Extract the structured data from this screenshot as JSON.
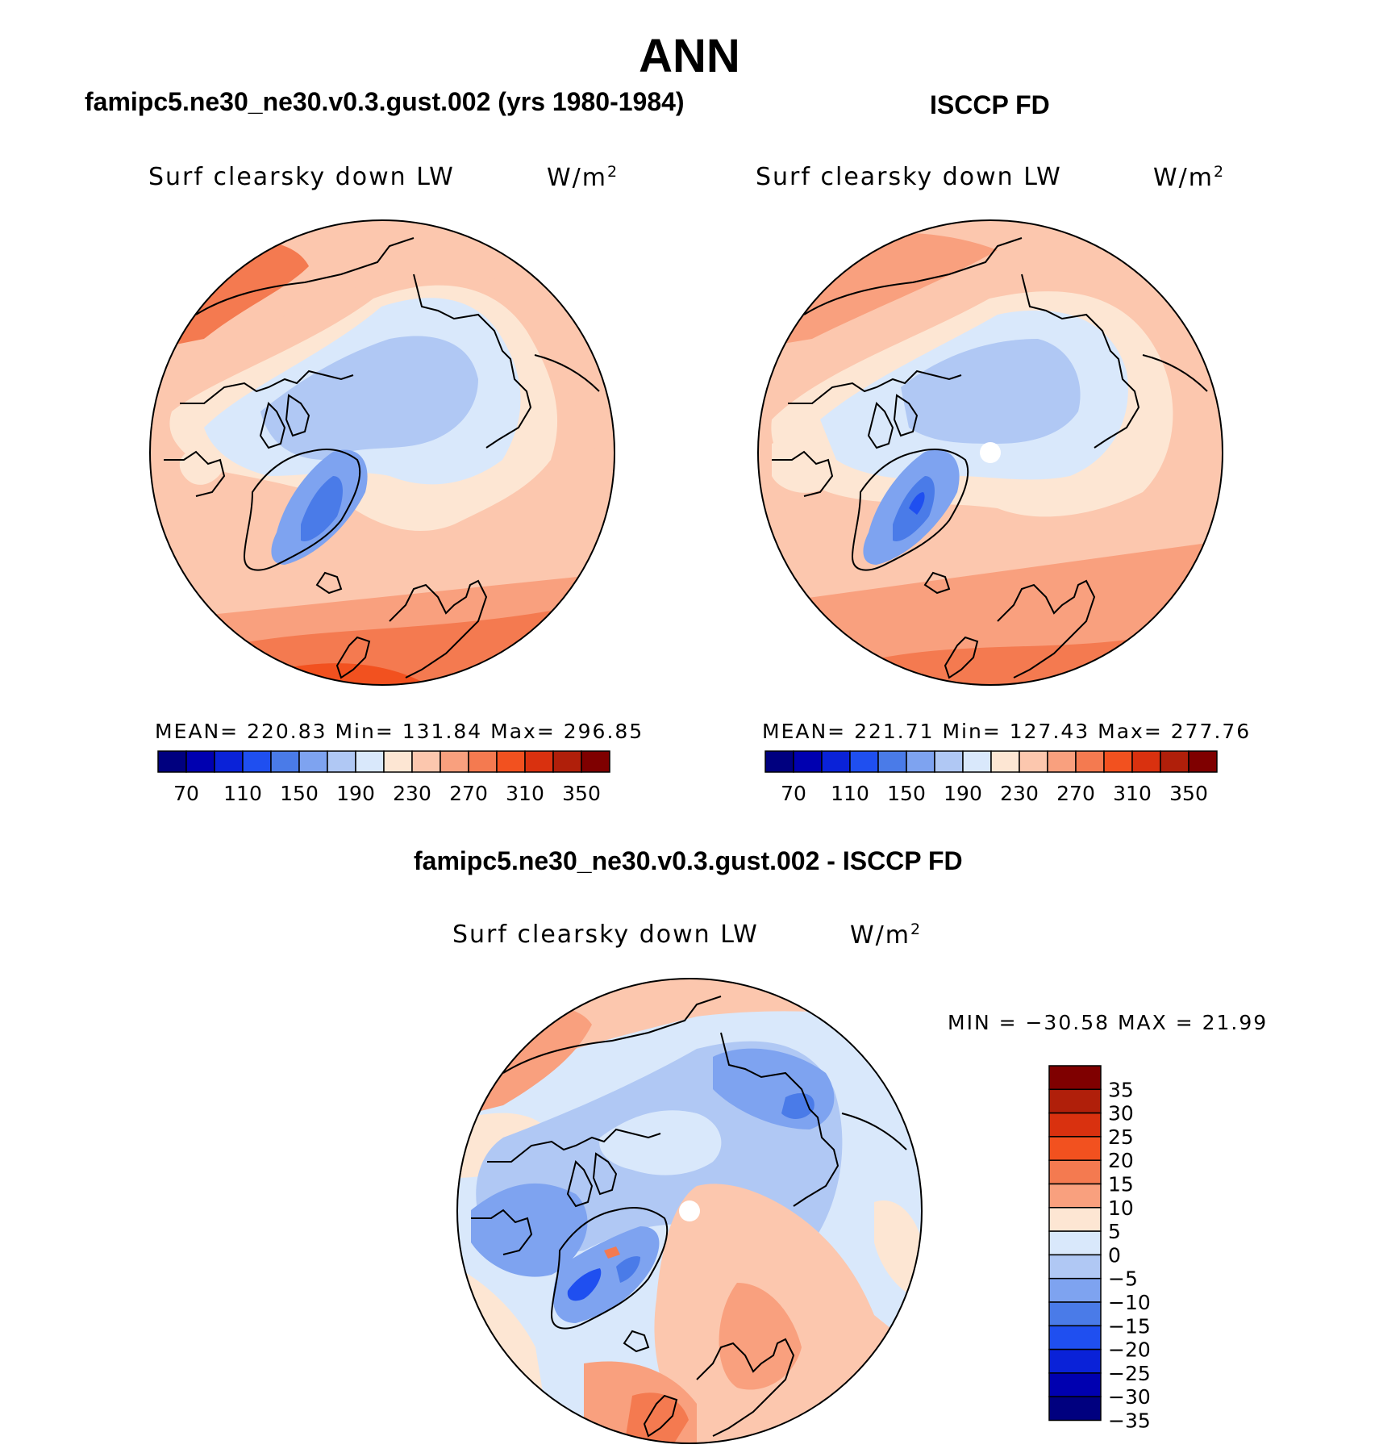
{
  "title": "ANN",
  "colors": {
    "abs_scale": [
      "#00007f",
      "#0000b0",
      "#0a22d8",
      "#1f4ff0",
      "#4a7be8",
      "#7ea3f0",
      "#b0c8f4",
      "#d9e8fb",
      "#fde6d3",
      "#fcc7ae",
      "#f9a07e",
      "#f47a50",
      "#f2511f",
      "#d9310f",
      "#b01f0a",
      "#7f0000"
    ],
    "diff_scale": [
      "#7f0000",
      "#b01f0a",
      "#d9310f",
      "#f2511f",
      "#f47a50",
      "#f9a07e",
      "#fde6d3",
      "#d9e8fb",
      "#b0c8f4",
      "#7ea3f0",
      "#4a7be8",
      "#1f4ff0",
      "#0a22d8",
      "#0000b0",
      "#00007f"
    ]
  },
  "panels": [
    {
      "title": "famipc5.ne30_ne30.v0.3.gust.002 (yrs 1980-1984)",
      "variable": "Surf clearsky down LW",
      "unit": "W/m",
      "unit_sup": "2",
      "stats": "MEAN= 220.83   Min= 131.84   Max= 296.85",
      "map_icon": "polar-stereographic-map",
      "colorbar_ticks": [
        "70",
        "110",
        "150",
        "190",
        "230",
        "270",
        "310",
        "350"
      ]
    },
    {
      "title": "ISCCP FD",
      "variable": "Surf clearsky down LW",
      "unit": "W/m",
      "unit_sup": "2",
      "stats": "MEAN= 221.71   Min= 127.43   Max= 277.76",
      "map_icon": "polar-stereographic-map",
      "colorbar_ticks": [
        "70",
        "110",
        "150",
        "190",
        "230",
        "270",
        "310",
        "350"
      ]
    }
  ],
  "diff_panel": {
    "title": "famipc5.ne30_ne30.v0.3.gust.002 - ISCCP FD",
    "variable": "Surf clearsky down LW",
    "unit": "W/m",
    "unit_sup": "2",
    "stats": "MIN = −30.58 MAX =   21.99",
    "map_icon": "polar-stereographic-map",
    "colorbar_ticks": [
      "35",
      "30",
      "25",
      "20",
      "15",
      "10",
      "5",
      "0",
      "−5",
      "−10",
      "−15",
      "−20",
      "−25",
      "−30",
      "−35"
    ]
  }
}
